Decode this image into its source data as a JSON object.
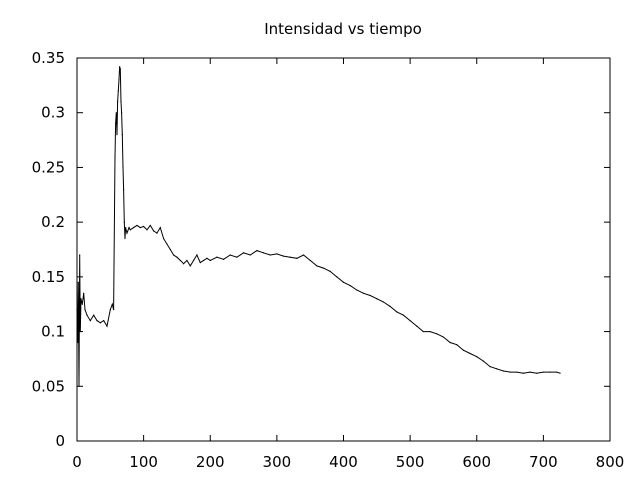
{
  "chart_data": {
    "type": "line",
    "title": "Intensidad vs tiempo",
    "xlabel": "",
    "ylabel": "",
    "xlim": [
      0,
      800
    ],
    "ylim": [
      0,
      0.35
    ],
    "xticks": [
      "0",
      "100",
      "200",
      "300",
      "400",
      "500",
      "600",
      "700",
      "800"
    ],
    "yticks": [
      "0",
      "0.05",
      "0.1",
      "0.15",
      "0.2",
      "0.25",
      "0.3",
      "0.35"
    ],
    "grid": false,
    "legend": "none",
    "line_color": "#000000",
    "series": [
      {
        "x": [
          0,
          1,
          2,
          3,
          4,
          5,
          6,
          8,
          10,
          12,
          15,
          20,
          25,
          30,
          35,
          40,
          45,
          50,
          53,
          55,
          57,
          58,
          59,
          60,
          61,
          62,
          63,
          64,
          65,
          66,
          67,
          68,
          69,
          70,
          71,
          72,
          73,
          75,
          78,
          80,
          85,
          90,
          95,
          100,
          105,
          110,
          115,
          120,
          125,
          130,
          135,
          140,
          145,
          150,
          155,
          160,
          165,
          170,
          175,
          180,
          185,
          190,
          195,
          200,
          210,
          220,
          230,
          240,
          250,
          260,
          270,
          280,
          290,
          300,
          310,
          320,
          330,
          340,
          350,
          360,
          370,
          380,
          390,
          400,
          410,
          420,
          430,
          440,
          450,
          460,
          470,
          480,
          490,
          500,
          510,
          520,
          530,
          540,
          550,
          560,
          570,
          580,
          590,
          600,
          610,
          620,
          630,
          640,
          650,
          660,
          670,
          680,
          690,
          700,
          710,
          720,
          725
        ],
        "y": [
          0.12,
          0.09,
          0.145,
          0.05,
          0.17,
          0.1,
          0.13,
          0.125,
          0.135,
          0.12,
          0.115,
          0.11,
          0.115,
          0.11,
          0.108,
          0.11,
          0.105,
          0.12,
          0.125,
          0.12,
          0.26,
          0.29,
          0.3,
          0.28,
          0.31,
          0.32,
          0.33,
          0.342,
          0.34,
          0.31,
          0.3,
          0.28,
          0.25,
          0.23,
          0.2,
          0.185,
          0.195,
          0.19,
          0.195,
          0.193,
          0.195,
          0.197,
          0.195,
          0.196,
          0.193,
          0.197,
          0.192,
          0.19,
          0.195,
          0.185,
          0.18,
          0.175,
          0.17,
          0.168,
          0.165,
          0.162,
          0.165,
          0.16,
          0.165,
          0.17,
          0.163,
          0.165,
          0.167,
          0.165,
          0.168,
          0.166,
          0.17,
          0.168,
          0.172,
          0.17,
          0.174,
          0.172,
          0.17,
          0.171,
          0.169,
          0.168,
          0.167,
          0.17,
          0.165,
          0.16,
          0.158,
          0.155,
          0.15,
          0.145,
          0.142,
          0.138,
          0.135,
          0.133,
          0.13,
          0.127,
          0.123,
          0.118,
          0.115,
          0.11,
          0.105,
          0.1,
          0.1,
          0.098,
          0.095,
          0.09,
          0.088,
          0.083,
          0.08,
          0.077,
          0.073,
          0.068,
          0.066,
          0.064,
          0.063,
          0.063,
          0.062,
          0.063,
          0.062,
          0.063,
          0.063,
          0.063,
          0.062
        ]
      }
    ]
  }
}
